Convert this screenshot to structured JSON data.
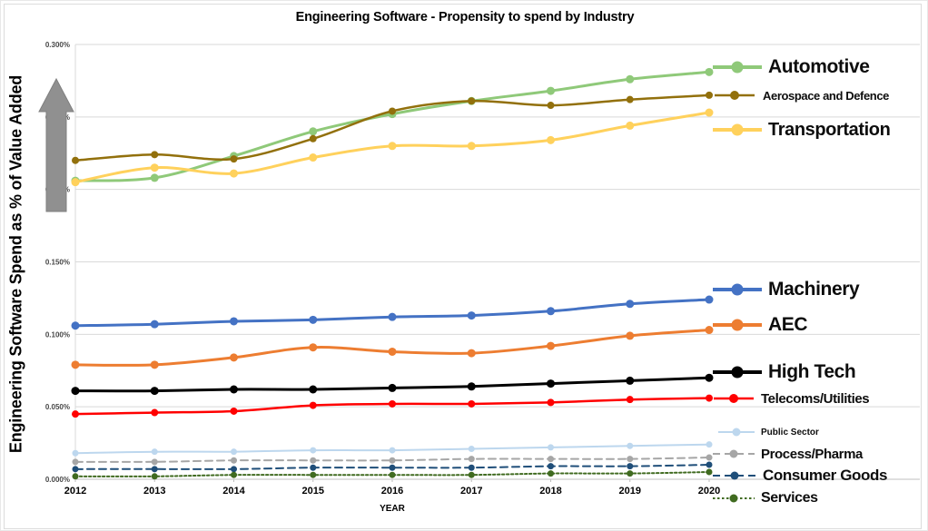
{
  "chart_data": {
    "type": "line",
    "title": "Engineering Software - Propensity to spend by Industry",
    "xlabel": "YEAR",
    "ylabel": "Engineering Software Spend as % of Value Added",
    "categories": [
      "2012",
      "2013",
      "2014",
      "2015",
      "2016",
      "2017",
      "2018",
      "2019",
      "2020"
    ],
    "y_ticks": [
      "0.300%",
      "0.250%",
      "0.200%",
      "0.150%",
      "0.100%",
      "0.050%",
      "0.000%"
    ],
    "ylim_percent": [
      0.0,
      0.3
    ],
    "y_tick_step_percent": 0.05,
    "grid": true,
    "legend_position": "right",
    "up_arrow_color": "#909090",
    "series": [
      {
        "name": "Automotive",
        "color": "#8FC979",
        "style": "solid",
        "size": "lg",
        "values": [
          0.206,
          0.208,
          0.223,
          0.24,
          0.252,
          0.261,
          0.268,
          0.276,
          0.281
        ]
      },
      {
        "name": "Aerospace and Defence",
        "color": "#92700C",
        "style": "solid",
        "size": "md",
        "values": [
          0.22,
          0.224,
          0.221,
          0.235,
          0.254,
          0.261,
          0.258,
          0.262,
          0.265
        ]
      },
      {
        "name": "Transportation",
        "color": "#FFD15C",
        "style": "solid",
        "size": "lg",
        "values": [
          0.205,
          0.215,
          0.211,
          0.222,
          0.23,
          0.23,
          0.234,
          0.244,
          0.253
        ]
      },
      {
        "name": "Machinery",
        "color": "#4472C4",
        "style": "solid",
        "size": "lg",
        "values": [
          0.106,
          0.107,
          0.109,
          0.11,
          0.112,
          0.113,
          0.116,
          0.121,
          0.124
        ]
      },
      {
        "name": "AEC",
        "color": "#ED7D31",
        "style": "solid",
        "size": "lg",
        "values": [
          0.079,
          0.079,
          0.084,
          0.091,
          0.088,
          0.087,
          0.092,
          0.099,
          0.103
        ]
      },
      {
        "name": "High Tech",
        "color": "#000000",
        "style": "solid",
        "size": "lg",
        "values": [
          0.061,
          0.061,
          0.062,
          0.062,
          0.063,
          0.064,
          0.066,
          0.068,
          0.07
        ]
      },
      {
        "name": "Telecoms/Utilities",
        "color": "#FF0000",
        "style": "solid",
        "size": "md",
        "values": [
          0.045,
          0.046,
          0.047,
          0.051,
          0.052,
          0.052,
          0.053,
          0.055,
          0.056
        ]
      },
      {
        "name": "Public Sector",
        "color": "#BDD7EE",
        "style": "solid",
        "size": "sm",
        "values": [
          0.018,
          0.019,
          0.019,
          0.02,
          0.02,
          0.021,
          0.022,
          0.023,
          0.024
        ]
      },
      {
        "name": "Process/Pharma",
        "color": "#A6A6A6",
        "style": "dashed",
        "size": "sm",
        "values": [
          0.012,
          0.012,
          0.013,
          0.013,
          0.013,
          0.014,
          0.014,
          0.014,
          0.015
        ]
      },
      {
        "name": "Consumer Goods",
        "color": "#1F4E79",
        "style": "dashed",
        "size": "sm",
        "values": [
          0.007,
          0.007,
          0.007,
          0.008,
          0.008,
          0.008,
          0.009,
          0.009,
          0.01
        ]
      },
      {
        "name": "Services",
        "color": "#406B20",
        "style": "dotted",
        "size": "sm",
        "values": [
          0.002,
          0.002,
          0.003,
          0.003,
          0.003,
          0.003,
          0.004,
          0.004,
          0.005
        ]
      }
    ]
  }
}
